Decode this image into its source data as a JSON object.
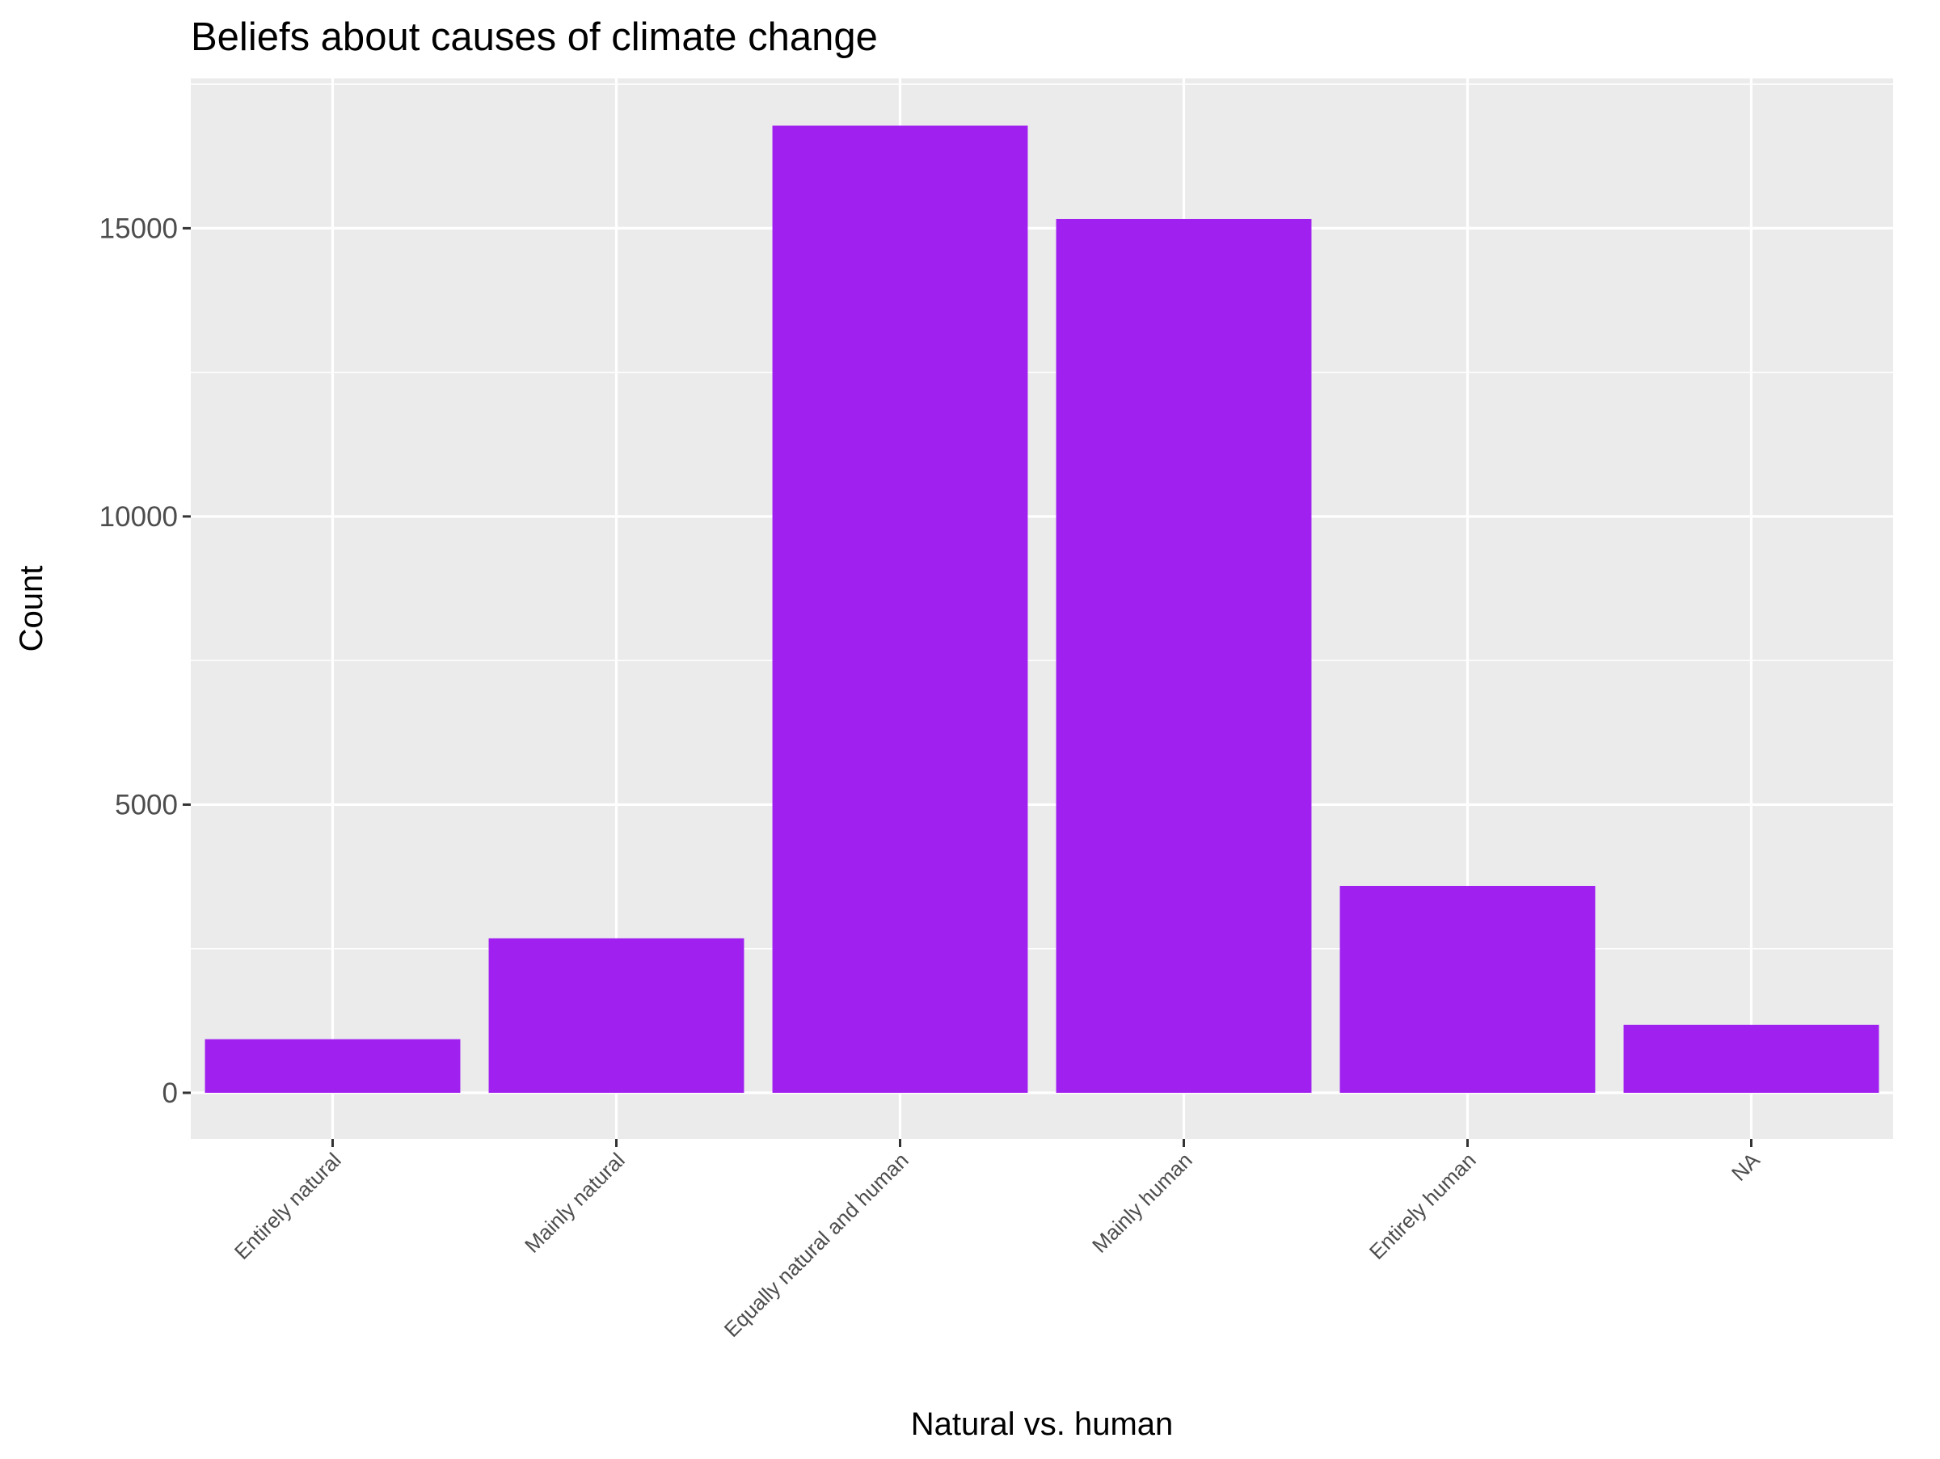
{
  "chart_data": {
    "type": "bar",
    "title": "Beliefs about causes of climate change",
    "xlabel": "Natural vs. human",
    "ylabel": "Count",
    "categories": [
      "Entirely natural",
      "Mainly natural",
      "Equally natural and human",
      "Mainly human",
      "Entirely human",
      "NA"
    ],
    "values": [
      930,
      2680,
      16780,
      15160,
      3590,
      1180
    ],
    "ylim": [
      -800,
      17600
    ],
    "yticks": [
      0,
      5000,
      10000,
      15000
    ],
    "ytick_labels": [
      "0",
      "5000",
      "10000",
      "15000"
    ],
    "grid": true,
    "legend": "none",
    "colors": {
      "bar": "#A020F0",
      "panel": "#EBEBEB",
      "grid": "#FFFFFF",
      "tick_text": "#4D4D4D",
      "axis_ticks": "#333333"
    }
  }
}
